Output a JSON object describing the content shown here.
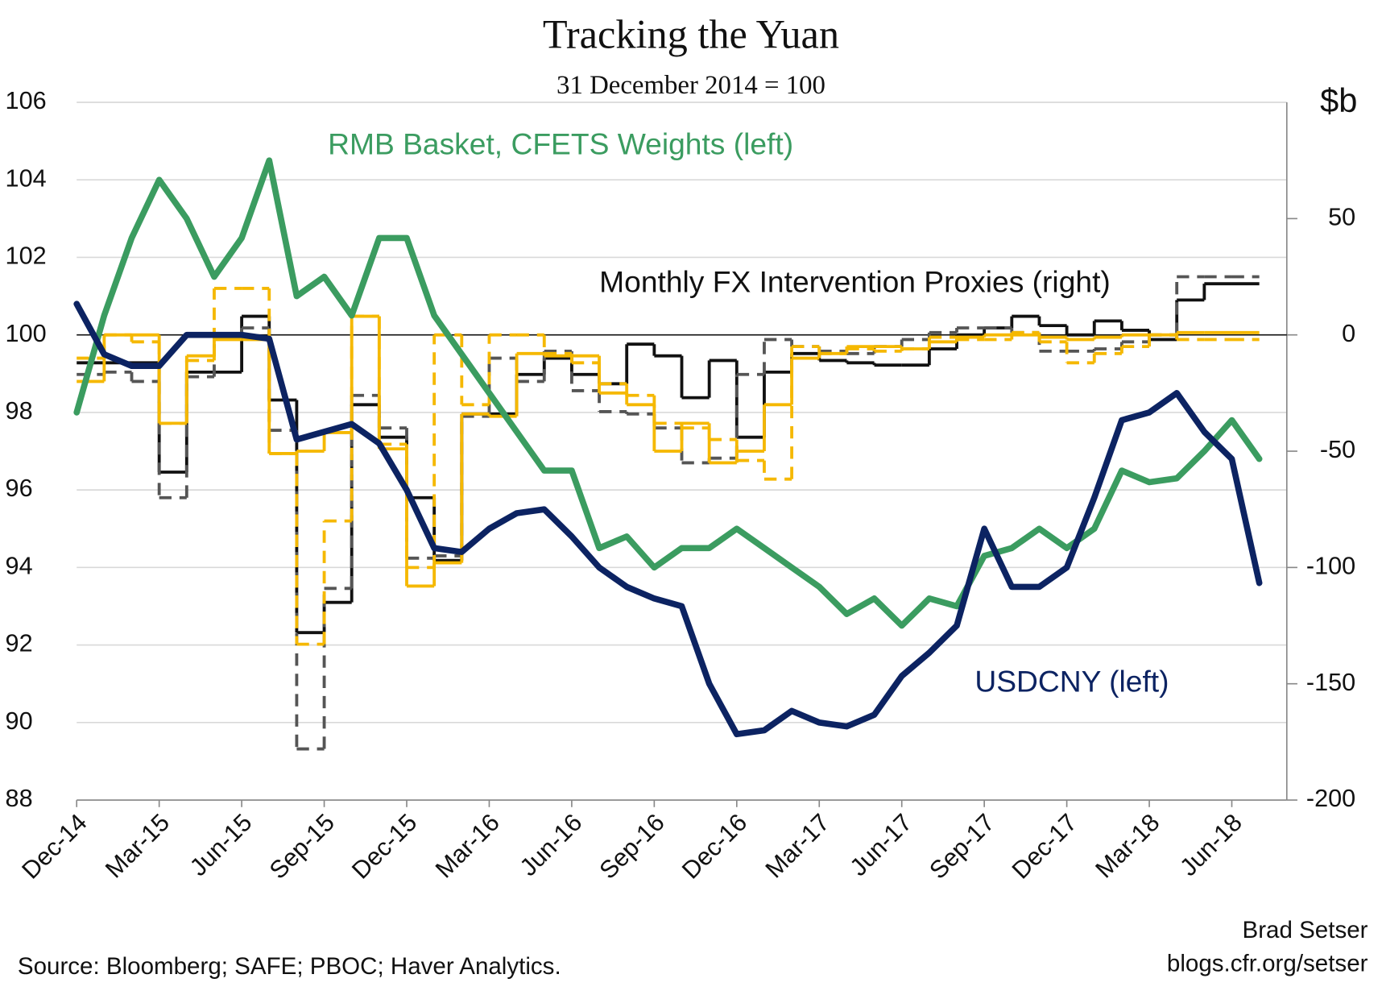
{
  "chart_data": {
    "type": "line",
    "title": "Tracking the Yuan",
    "subtitle": "31 December 2014 = 100",
    "y2_label": "$b",
    "source": "Source: Bloomberg; SAFE; PBOC; Haver Analytics.",
    "credit": [
      "Brad Setser",
      "blogs.cfr.org/setser"
    ],
    "annotation": "Monthly FX Intervention Proxies (right)",
    "x": [
      "2014-12",
      "2015-01",
      "2015-02",
      "2015-03",
      "2015-04",
      "2015-05",
      "2015-06",
      "2015-07",
      "2015-08",
      "2015-09",
      "2015-10",
      "2015-11",
      "2015-12",
      "2016-01",
      "2016-02",
      "2016-03",
      "2016-04",
      "2016-05",
      "2016-06",
      "2016-07",
      "2016-08",
      "2016-09",
      "2016-10",
      "2016-11",
      "2016-12",
      "2017-01",
      "2017-02",
      "2017-03",
      "2017-04",
      "2017-05",
      "2017-06",
      "2017-07",
      "2017-08",
      "2017-09",
      "2017-10",
      "2017-11",
      "2017-12",
      "2018-01",
      "2018-02",
      "2018-03",
      "2018-04",
      "2018-05",
      "2018-06",
      "2018-07"
    ],
    "xlim": [
      "2014-12",
      "2018-08"
    ],
    "xticks": [
      {
        "value": "2014-12",
        "label": "Dec-14"
      },
      {
        "value": "2015-03",
        "label": "Mar-15"
      },
      {
        "value": "2015-06",
        "label": "Jun-15"
      },
      {
        "value": "2015-09",
        "label": "Sep-15"
      },
      {
        "value": "2015-12",
        "label": "Dec-15"
      },
      {
        "value": "2016-03",
        "label": "Mar-16"
      },
      {
        "value": "2016-06",
        "label": "Jun-16"
      },
      {
        "value": "2016-09",
        "label": "Sep-16"
      },
      {
        "value": "2016-12",
        "label": "Dec-16"
      },
      {
        "value": "2017-03",
        "label": "Mar-17"
      },
      {
        "value": "2017-06",
        "label": "Jun-17"
      },
      {
        "value": "2017-09",
        "label": "Sep-17"
      },
      {
        "value": "2017-12",
        "label": "Dec-17"
      },
      {
        "value": "2018-03",
        "label": "Mar-18"
      },
      {
        "value": "2018-06",
        "label": "Jun-18"
      }
    ],
    "ylim": [
      88,
      106
    ],
    "yticks": [
      88,
      90,
      92,
      94,
      96,
      98,
      100,
      102,
      104,
      106
    ],
    "y2lim": [
      -200,
      100
    ],
    "y2ticks": [
      -200,
      -150,
      -100,
      -50,
      0,
      50
    ],
    "grid": true,
    "series": [
      {
        "name": "RMB Basket, CFETS Weights (left)",
        "color": "#3b9c60",
        "style": "solid",
        "step": false,
        "values": [
          98,
          100.5,
          102.5,
          104,
          103,
          101.5,
          102.5,
          104.5,
          101,
          101.5,
          100.5,
          102.5,
          102.5,
          100.5,
          99.5,
          98.5,
          97.5,
          96.5,
          96.5,
          94.5,
          94.8,
          94,
          94.5,
          94.5,
          95,
          94.5,
          94,
          93.5,
          92.8,
          93.2,
          92.5,
          93.2,
          93,
          94.3,
          94.5,
          95,
          94.5,
          95,
          96.5,
          96.2,
          96.3,
          97,
          97.8,
          96.8
        ]
      },
      {
        "name": "USDCNY (left)",
        "color": "#0c2362",
        "style": "solid",
        "step": false,
        "values": [
          100.8,
          99.5,
          99.2,
          99.2,
          100,
          100,
          100,
          99.9,
          97.3,
          97.5,
          97.7,
          97.2,
          96,
          94.5,
          94.4,
          95,
          95.4,
          95.5,
          94.8,
          94,
          93.5,
          93.2,
          93,
          91,
          89.7,
          89.8,
          90.3,
          90,
          89.9,
          90.2,
          91.2,
          91.8,
          92.5,
          95,
          93.5,
          93.5,
          94,
          95.8,
          97.8,
          98,
          98.5,
          97.5,
          96.8,
          93.6
        ]
      },
      {
        "axis": "y2",
        "color": "#111111",
        "style": "solid",
        "step": true,
        "values": [
          -12,
          -12,
          -12,
          -59,
          -16,
          -16,
          8,
          -28,
          -128,
          -115,
          -30,
          -44,
          -70,
          -97,
          -34,
          -34,
          -17,
          -10,
          -17,
          -21,
          -4,
          -9,
          -27,
          -11,
          -44,
          -16,
          -8,
          -11,
          -12,
          -13,
          -13,
          -6,
          0,
          3,
          8,
          4,
          0,
          6,
          2,
          -2,
          15,
          22,
          22,
          null
        ]
      },
      {
        "axis": "y2",
        "color": "#555555",
        "style": "dashed",
        "step": true,
        "values": [
          -17,
          -16,
          -20,
          -70,
          -18,
          0,
          3,
          -41,
          -178,
          -109,
          -26,
          -40,
          -96,
          -95,
          -35,
          -10,
          -20,
          -7,
          -24,
          -33,
          -34,
          -40,
          -55,
          -53,
          -17,
          -2,
          -5,
          -7,
          -8,
          -5,
          -2,
          1,
          3,
          3,
          1,
          -7,
          -7,
          -6,
          -3,
          0,
          25,
          25,
          25,
          null
        ]
      },
      {
        "axis": "y2",
        "color": "#f5b800",
        "style": "solid",
        "step": true,
        "values": [
          -20,
          0,
          0,
          -38,
          -9,
          -2,
          -2,
          -51,
          -50,
          -42,
          8,
          -49,
          -108,
          -98,
          -34,
          -35,
          -8,
          -9,
          -9,
          -25,
          -30,
          -50,
          -38,
          -55,
          -50,
          -30,
          -10,
          -8,
          -5,
          -5,
          -6,
          -3,
          -1,
          0,
          0,
          -1,
          -2,
          -1,
          0,
          0,
          1,
          1,
          1,
          null
        ]
      },
      {
        "axis": "y2",
        "color": "#f5b800",
        "style": "dashed",
        "step": true,
        "values": [
          -10,
          0,
          -3,
          -38,
          -11,
          20,
          20,
          -51,
          -133,
          -80,
          8,
          -47,
          -100,
          0,
          -30,
          0,
          0,
          -8,
          -12,
          -21,
          -26,
          -38,
          -40,
          -45,
          -54,
          -62,
          -5,
          -8,
          -6,
          -7,
          -6,
          -1,
          -2,
          -2,
          1,
          -3,
          -12,
          -8,
          -5,
          0,
          -2,
          -2,
          -2,
          null
        ]
      }
    ]
  }
}
